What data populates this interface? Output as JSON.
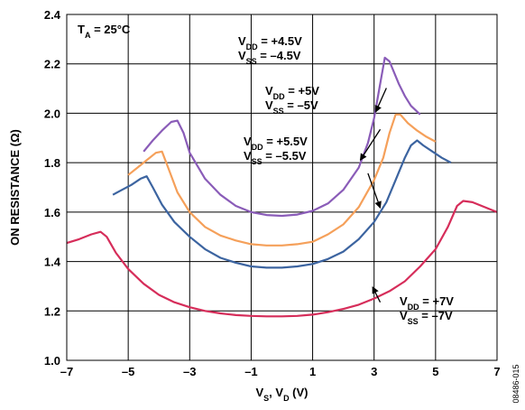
{
  "chart_data": {
    "type": "line",
    "ylabel": "ON RESISTANCE (Ω)",
    "xlabel": {
      "parts": [
        {
          "t": "V"
        },
        {
          "t": "S",
          "sub": true
        },
        {
          "t": ", V"
        },
        {
          "t": "D",
          "sub": true
        },
        {
          "t": " (V)"
        }
      ]
    },
    "xlim": [
      -7,
      7
    ],
    "ylim": [
      1.0,
      2.4
    ],
    "xticks": [
      -7,
      -5,
      -3,
      -1,
      1,
      3,
      5,
      7
    ],
    "xtick_labels": [
      "–7",
      "–5",
      "–3",
      "–1",
      "1",
      "3",
      "5",
      "7"
    ],
    "yticks": [
      1.0,
      1.2,
      1.4,
      1.6,
      1.8,
      2.0,
      2.2,
      2.4
    ],
    "ytick_labels": [
      "1.0",
      "1.2",
      "1.4",
      "1.6",
      "1.8",
      "2.0",
      "2.2",
      "2.4"
    ],
    "grid": true,
    "temperature_label": {
      "parts": [
        {
          "t": "T"
        },
        {
          "t": "A",
          "sub": true
        },
        {
          "t": " = 25°C"
        }
      ]
    },
    "figure_id": "08486-015",
    "series": [
      {
        "color": "#8a5cb8",
        "label_lines": [
          [
            {
              "t": "V"
            },
            {
              "t": "DD",
              "sub": true
            },
            {
              "t": " = +4.5V"
            }
          ],
          [
            {
              "t": "V"
            },
            {
              "t": "SS",
              "sub": true
            },
            {
              "t": " = –4.5V"
            }
          ]
        ],
        "points": [
          [
            -4.5,
            1.845
          ],
          [
            -4.2,
            1.89
          ],
          [
            -3.9,
            1.93
          ],
          [
            -3.6,
            1.965
          ],
          [
            -3.4,
            1.97
          ],
          [
            -3.2,
            1.92
          ],
          [
            -3.0,
            1.84
          ],
          [
            -2.5,
            1.735
          ],
          [
            -2.0,
            1.67
          ],
          [
            -1.5,
            1.625
          ],
          [
            -1.0,
            1.6
          ],
          [
            -0.5,
            1.588
          ],
          [
            0.0,
            1.585
          ],
          [
            0.5,
            1.59
          ],
          [
            1.0,
            1.605
          ],
          [
            1.5,
            1.635
          ],
          [
            2.0,
            1.69
          ],
          [
            2.5,
            1.78
          ],
          [
            2.8,
            1.88
          ],
          [
            3.0,
            1.98
          ],
          [
            3.2,
            2.12
          ],
          [
            3.35,
            2.225
          ],
          [
            3.5,
            2.21
          ],
          [
            3.8,
            2.12
          ],
          [
            4.0,
            2.07
          ],
          [
            4.2,
            2.03
          ],
          [
            4.5,
            1.995
          ]
        ]
      },
      {
        "color": "#f5a05a",
        "label_lines": [
          [
            {
              "t": "V"
            },
            {
              "t": "DD",
              "sub": true
            },
            {
              "t": " = +5V"
            }
          ],
          [
            {
              "t": "V"
            },
            {
              "t": "SS",
              "sub": true
            },
            {
              "t": " = –5V"
            }
          ]
        ],
        "points": [
          [
            -5.0,
            1.75
          ],
          [
            -4.7,
            1.78
          ],
          [
            -4.4,
            1.81
          ],
          [
            -4.1,
            1.84
          ],
          [
            -3.9,
            1.845
          ],
          [
            -3.7,
            1.78
          ],
          [
            -3.4,
            1.68
          ],
          [
            -3.0,
            1.6
          ],
          [
            -2.5,
            1.54
          ],
          [
            -2.0,
            1.505
          ],
          [
            -1.5,
            1.485
          ],
          [
            -1.0,
            1.47
          ],
          [
            -0.5,
            1.465
          ],
          [
            0.0,
            1.465
          ],
          [
            0.5,
            1.47
          ],
          [
            1.0,
            1.48
          ],
          [
            1.5,
            1.51
          ],
          [
            2.0,
            1.55
          ],
          [
            2.5,
            1.62
          ],
          [
            3.0,
            1.73
          ],
          [
            3.3,
            1.82
          ],
          [
            3.5,
            1.92
          ],
          [
            3.7,
            1.995
          ],
          [
            3.85,
            1.995
          ],
          [
            4.1,
            1.96
          ],
          [
            4.4,
            1.93
          ],
          [
            4.7,
            1.905
          ],
          [
            5.0,
            1.885
          ]
        ]
      },
      {
        "color": "#3c64a0",
        "label_lines": [
          [
            {
              "t": "V"
            },
            {
              "t": "DD",
              "sub": true
            },
            {
              "t": " = +5.5V"
            }
          ],
          [
            {
              "t": "V"
            },
            {
              "t": "SS",
              "sub": true
            },
            {
              "t": " = –5.5V"
            }
          ]
        ],
        "points": [
          [
            -5.5,
            1.67
          ],
          [
            -5.2,
            1.69
          ],
          [
            -4.9,
            1.71
          ],
          [
            -4.6,
            1.735
          ],
          [
            -4.4,
            1.745
          ],
          [
            -4.2,
            1.7
          ],
          [
            -3.9,
            1.63
          ],
          [
            -3.5,
            1.56
          ],
          [
            -3.0,
            1.5
          ],
          [
            -2.5,
            1.45
          ],
          [
            -2.0,
            1.415
          ],
          [
            -1.5,
            1.395
          ],
          [
            -1.0,
            1.38
          ],
          [
            -0.5,
            1.375
          ],
          [
            0.0,
            1.375
          ],
          [
            0.5,
            1.38
          ],
          [
            1.0,
            1.39
          ],
          [
            1.5,
            1.41
          ],
          [
            2.0,
            1.44
          ],
          [
            2.5,
            1.49
          ],
          [
            3.0,
            1.56
          ],
          [
            3.4,
            1.64
          ],
          [
            3.7,
            1.73
          ],
          [
            4.0,
            1.82
          ],
          [
            4.2,
            1.87
          ],
          [
            4.4,
            1.89
          ],
          [
            4.6,
            1.87
          ],
          [
            4.9,
            1.845
          ],
          [
            5.2,
            1.82
          ],
          [
            5.5,
            1.8
          ]
        ]
      },
      {
        "color": "#d62d5a",
        "label_lines": [
          [
            {
              "t": "V"
            },
            {
              "t": "DD",
              "sub": true
            },
            {
              "t": " = +7V"
            }
          ],
          [
            {
              "t": "V"
            },
            {
              "t": "SS",
              "sub": true
            },
            {
              "t": " = –7V"
            }
          ]
        ],
        "points": [
          [
            -7.0,
            1.475
          ],
          [
            -6.6,
            1.49
          ],
          [
            -6.2,
            1.51
          ],
          [
            -5.9,
            1.52
          ],
          [
            -5.7,
            1.5
          ],
          [
            -5.4,
            1.435
          ],
          [
            -5.0,
            1.37
          ],
          [
            -4.5,
            1.31
          ],
          [
            -4.0,
            1.265
          ],
          [
            -3.5,
            1.235
          ],
          [
            -3.0,
            1.215
          ],
          [
            -2.5,
            1.2
          ],
          [
            -2.0,
            1.19
          ],
          [
            -1.5,
            1.183
          ],
          [
            -1.0,
            1.18
          ],
          [
            -0.5,
            1.178
          ],
          [
            0.0,
            1.178
          ],
          [
            0.5,
            1.18
          ],
          [
            1.0,
            1.185
          ],
          [
            1.5,
            1.195
          ],
          [
            2.0,
            1.208
          ],
          [
            2.5,
            1.225
          ],
          [
            3.0,
            1.25
          ],
          [
            3.5,
            1.28
          ],
          [
            4.0,
            1.32
          ],
          [
            4.5,
            1.38
          ],
          [
            5.0,
            1.45
          ],
          [
            5.4,
            1.54
          ],
          [
            5.7,
            1.625
          ],
          [
            5.9,
            1.645
          ],
          [
            6.2,
            1.64
          ],
          [
            6.6,
            1.62
          ],
          [
            7.0,
            1.6
          ]
        ]
      }
    ],
    "annotations": [
      {
        "series": 0,
        "from": [
          3.4,
          2.102
        ],
        "to": [
          3.05,
          2.005
        ]
      },
      {
        "series": 1,
        "from": [
          3.2,
          1.935
        ],
        "to": [
          2.55,
          1.81
        ]
      },
      {
        "series": 2,
        "from": [
          2.8,
          1.757
        ],
        "to": [
          3.2,
          1.617
        ]
      },
      {
        "series": 3,
        "from": [
          3.2,
          1.235
        ],
        "to": [
          2.95,
          1.297
        ]
      }
    ]
  }
}
